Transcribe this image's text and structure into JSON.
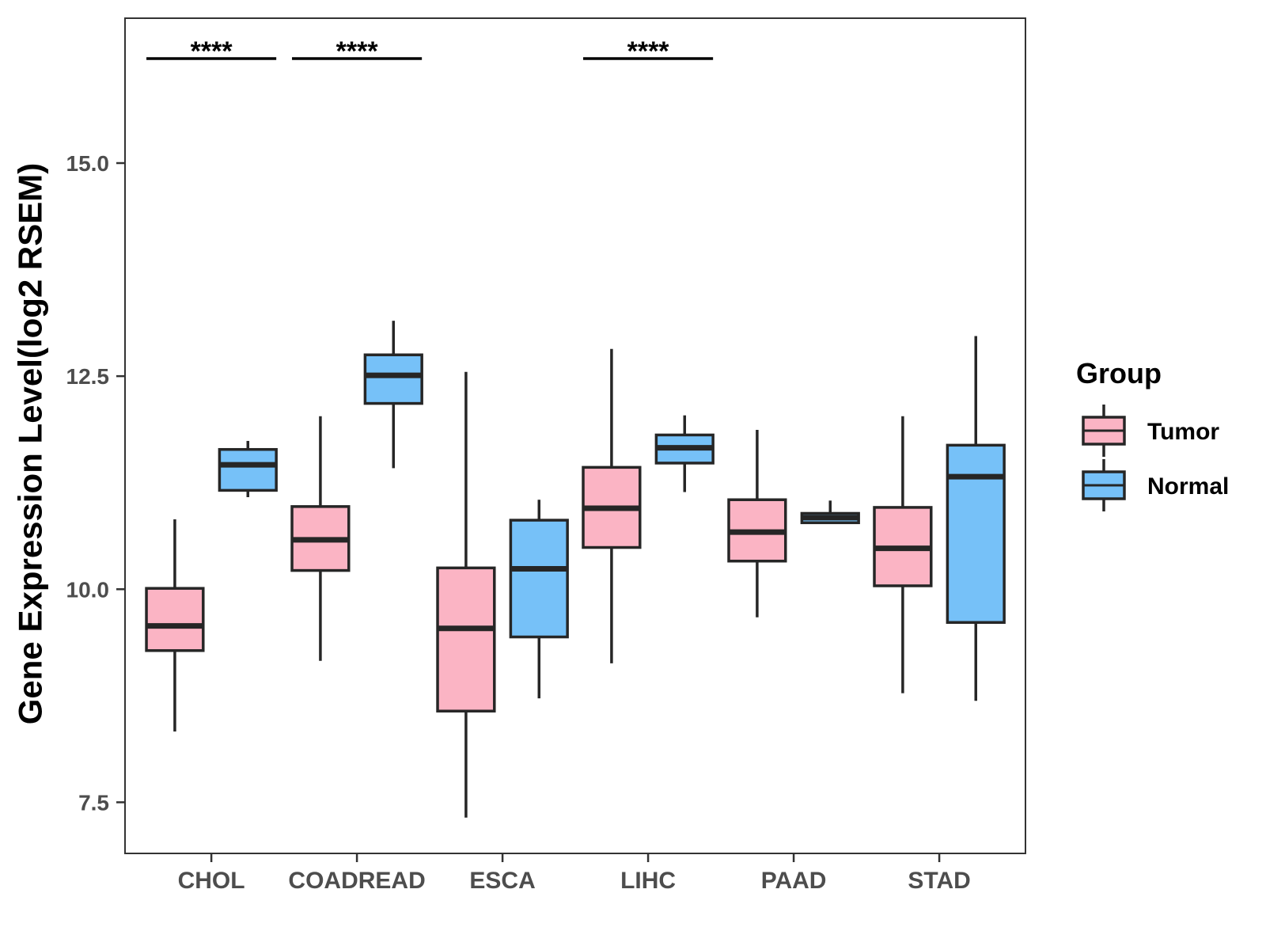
{
  "chart_data": {
    "type": "boxplot",
    "title": "",
    "xlabel": "",
    "ylabel": "Gene Expression Level(log2 RSEM)",
    "ylim": [
      6.9,
      16.7
    ],
    "yticks": [
      7.5,
      10.0,
      12.5,
      15.0
    ],
    "ytick_labels": [
      "7.5",
      "10.0",
      "12.5",
      "15.0"
    ],
    "categories": [
      "CHOL",
      "COADREAD",
      "ESCA",
      "LIHC",
      "PAAD",
      "STAD"
    ],
    "legend": {
      "title": "Group",
      "position": "right",
      "entries": [
        "Tumor",
        "Normal"
      ]
    },
    "colors": {
      "Tumor": "#FBB4C4",
      "Normal": "#76C1F8",
      "outline": "#262626"
    },
    "series": [
      {
        "name": "Tumor",
        "boxes": [
          {
            "min": 8.33,
            "q1": 9.28,
            "median": 9.57,
            "q3": 10.01,
            "max": 10.82
          },
          {
            "min": 9.16,
            "q1": 10.22,
            "median": 10.58,
            "q3": 10.97,
            "max": 12.03
          },
          {
            "min": 7.32,
            "q1": 8.57,
            "median": 9.54,
            "q3": 10.25,
            "max": 12.55
          },
          {
            "min": 9.13,
            "q1": 10.49,
            "median": 10.95,
            "q3": 11.43,
            "max": 12.82
          },
          {
            "min": 9.67,
            "q1": 10.33,
            "median": 10.67,
            "q3": 11.05,
            "max": 11.87
          },
          {
            "min": 8.78,
            "q1": 10.04,
            "median": 10.48,
            "q3": 10.96,
            "max": 12.03
          }
        ]
      },
      {
        "name": "Normal",
        "boxes": [
          {
            "min": 11.08,
            "q1": 11.16,
            "median": 11.46,
            "q3": 11.64,
            "max": 11.74
          },
          {
            "min": 11.42,
            "q1": 12.18,
            "median": 12.51,
            "q3": 12.75,
            "max": 13.15
          },
          {
            "min": 8.72,
            "q1": 9.44,
            "median": 10.24,
            "q3": 10.81,
            "max": 11.05
          },
          {
            "min": 11.14,
            "q1": 11.48,
            "median": 11.66,
            "q3": 11.81,
            "max": 12.04
          },
          {
            "min": 10.77,
            "q1": 10.78,
            "median": 10.84,
            "q3": 10.89,
            "max": 11.04
          },
          {
            "min": 8.69,
            "q1": 9.61,
            "median": 11.32,
            "q3": 11.69,
            "max": 12.97
          }
        ]
      }
    ],
    "annotations": [
      {
        "category": "CHOL",
        "text": "****"
      },
      {
        "category": "COADREAD",
        "text": "****"
      },
      {
        "category": "LIHC",
        "text": "****"
      }
    ]
  }
}
